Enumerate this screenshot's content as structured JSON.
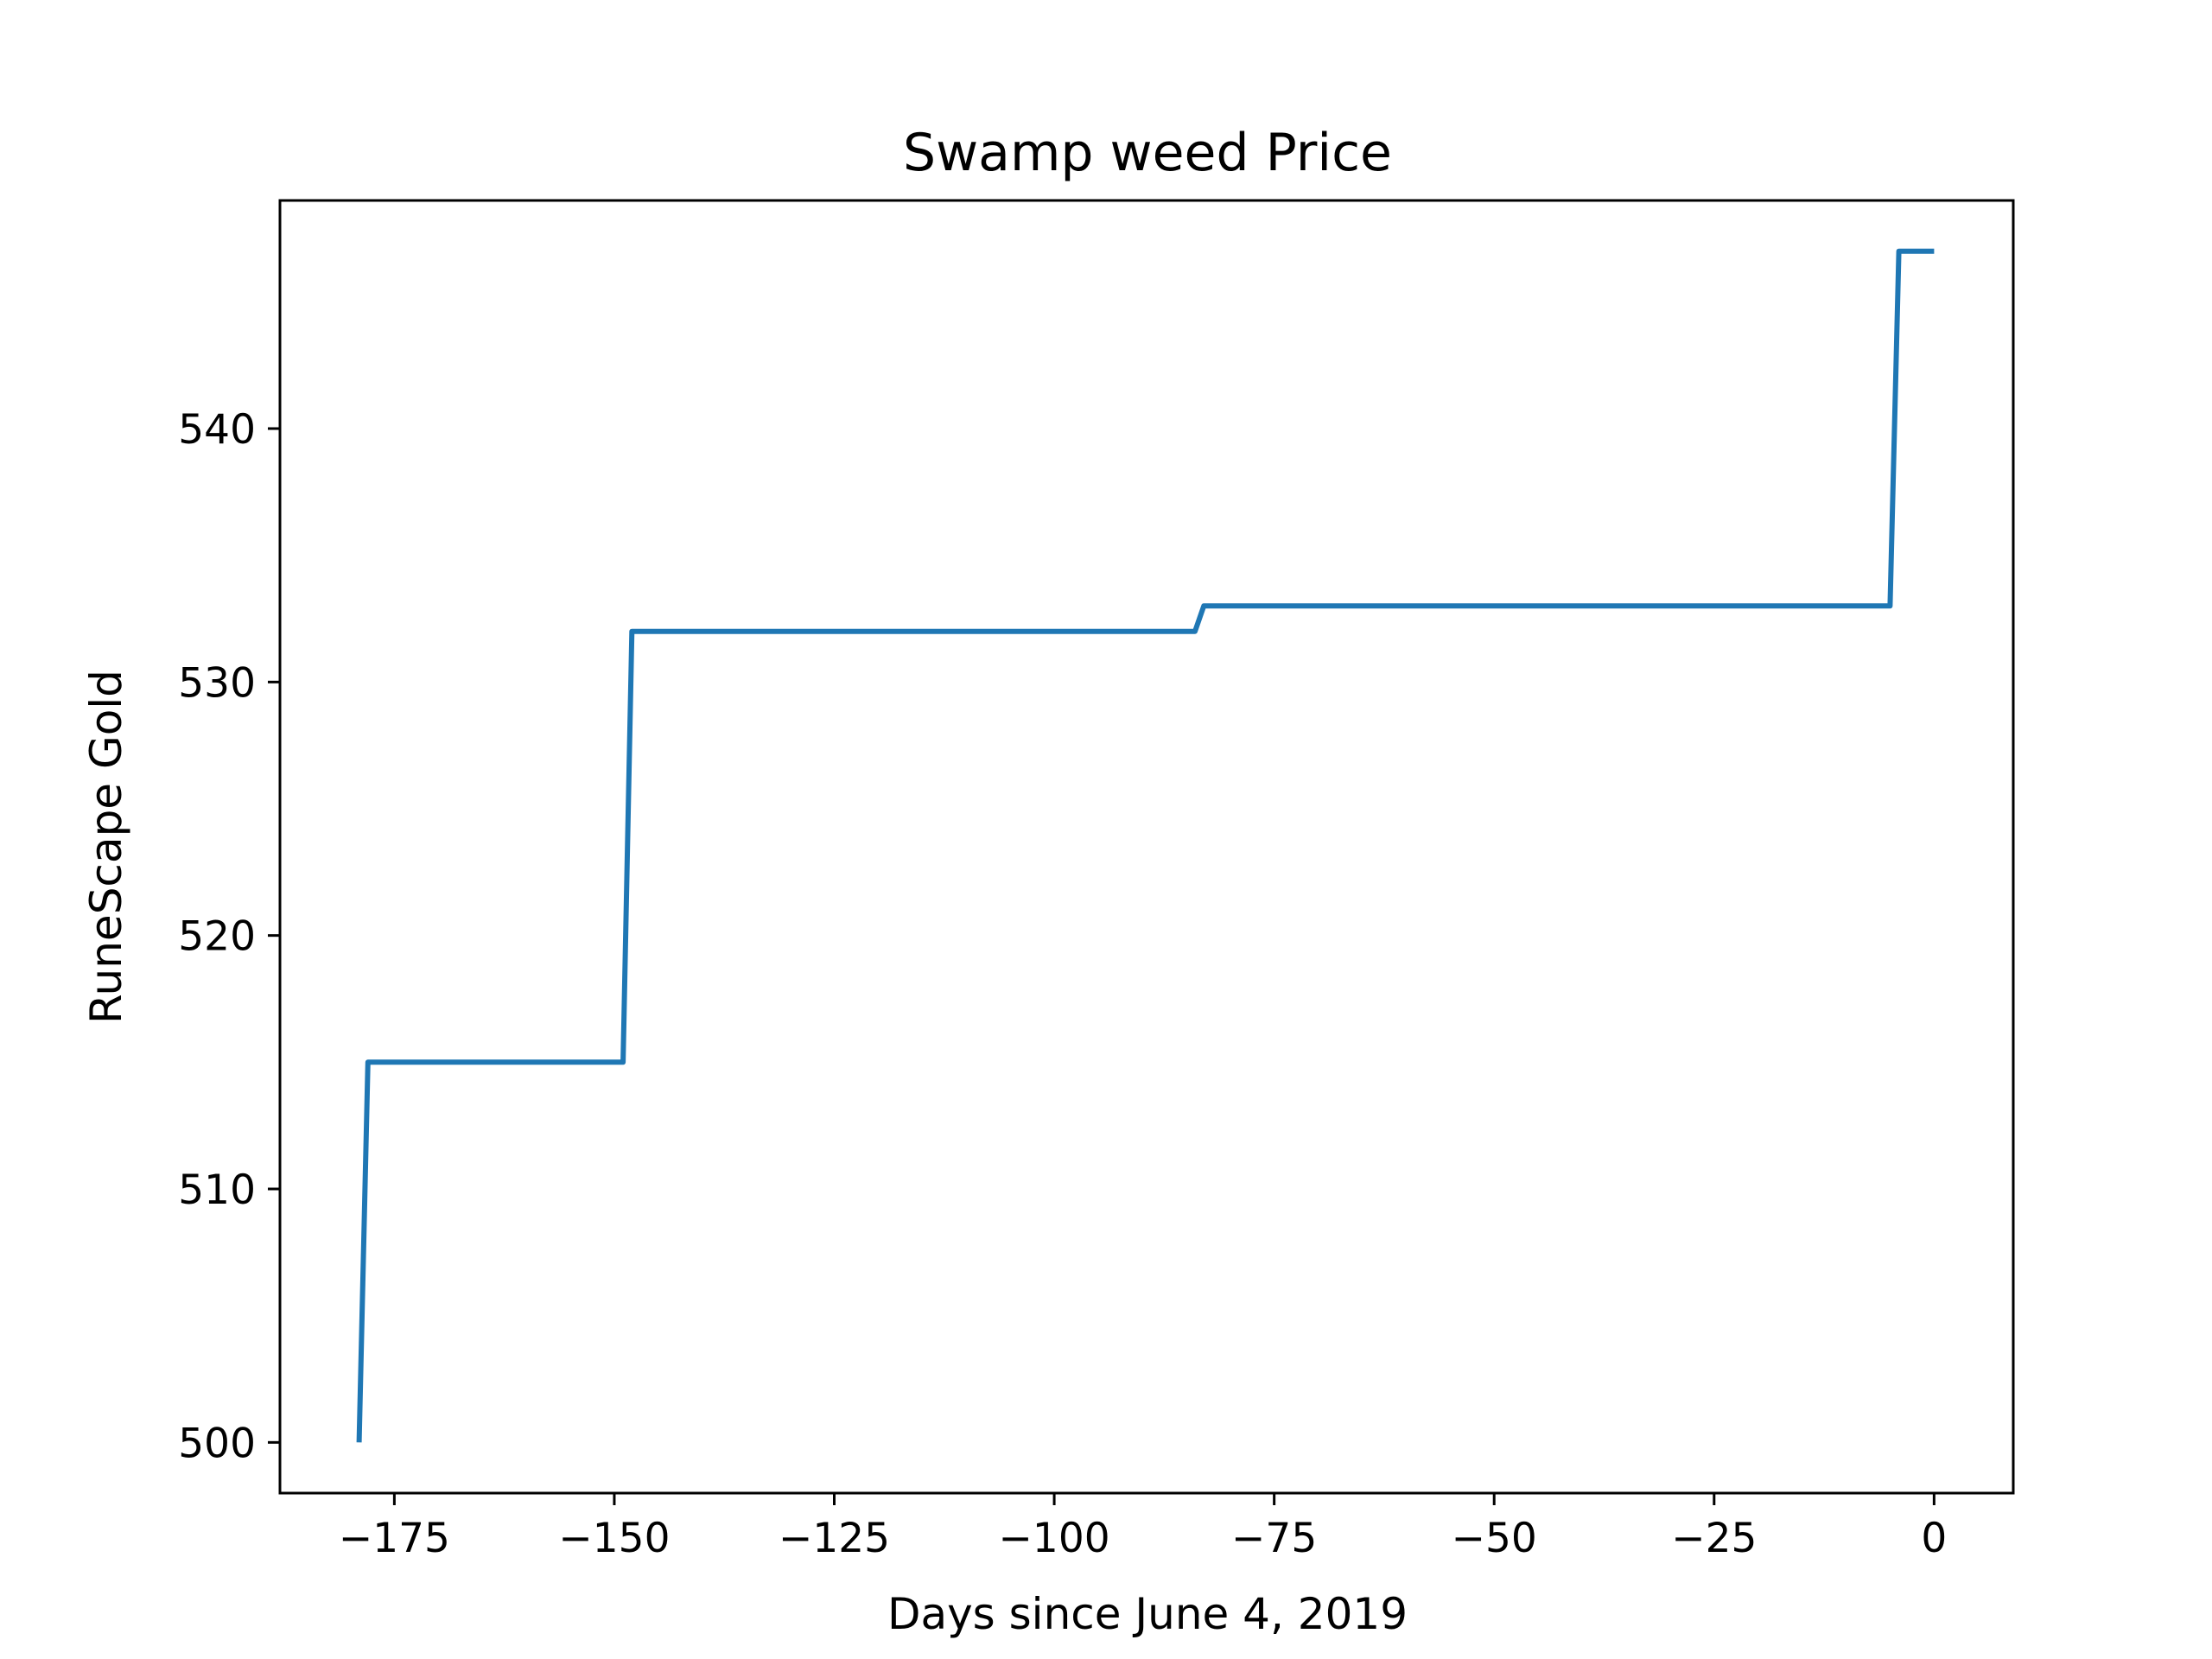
{
  "chart_data": {
    "type": "line",
    "title": "Swamp weed Price",
    "xlabel": "Days since June 4, 2019",
    "ylabel": "RuneScape Gold",
    "xlim": [
      -188,
      9
    ],
    "ylim": [
      498,
      549
    ],
    "x_ticks": [
      -175,
      -150,
      -125,
      -100,
      -75,
      -50,
      -25,
      0
    ],
    "x_tick_labels": [
      "−175",
      "−150",
      "−125",
      "−100",
      "−75",
      "−50",
      "−25",
      "0"
    ],
    "y_ticks": [
      500,
      510,
      520,
      530,
      540
    ],
    "y_tick_labels": [
      "500",
      "510",
      "520",
      "530",
      "540"
    ],
    "grid": false,
    "legend": "none",
    "series": [
      {
        "color": "#1f77b4",
        "x": [
          -179,
          -178,
          -149,
          -148,
          -84,
          -83,
          -5,
          -4,
          0
        ],
        "y": [
          500,
          515,
          515,
          532,
          532,
          533,
          533,
          547,
          547
        ]
      }
    ]
  }
}
